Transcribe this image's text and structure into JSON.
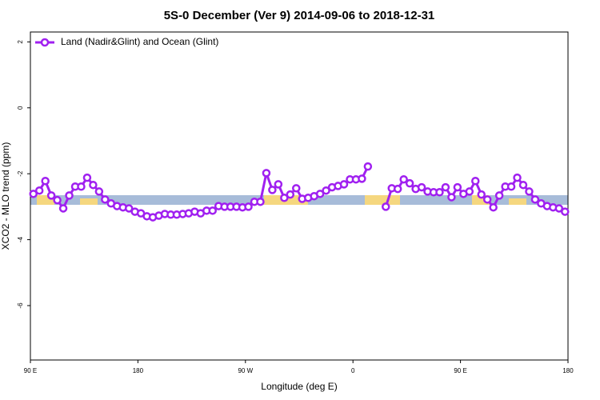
{
  "chart_data": {
    "type": "line",
    "title": "5S-0 December (Ver 9)   2014-09-06 to 2018-12-31",
    "x_label": "Longitude (deg E)",
    "y_label": "XCO2 - MLO trend (ppm)",
    "xlim": [
      90,
      540
    ],
    "xticks": [
      {
        "value": 90,
        "label": "90 E"
      },
      180,
      {
        "value": 270,
        "label": "90 W"
      },
      {
        "value": 360,
        "label": "0"
      },
      {
        "value": 450,
        "label": "90 E"
      },
      {
        "value": 540,
        "label": "180"
      }
    ],
    "ylim": [
      -7.65,
      2.3
    ],
    "yticks": [
      -6,
      -4,
      -2,
      0,
      2
    ],
    "legend": "top-left",
    "x": [
      92.5,
      97.5,
      102.5,
      107.5,
      112.5,
      117.5,
      122.5,
      127.5,
      132.5,
      137.5,
      142.5,
      147.5,
      152.5,
      157.5,
      162.5,
      167.5,
      172.5,
      177.5,
      182.5,
      187.5,
      192.5,
      197.5,
      202.5,
      207.5,
      212.5,
      217.5,
      222.5,
      227.5,
      232.5,
      237.5,
      242.5,
      247.5,
      252.5,
      257.5,
      262.5,
      267.5,
      272.5,
      277.5,
      282.5,
      287.5,
      292.5,
      297.5,
      302.5,
      307.5,
      312.5,
      317.5,
      322.5,
      327.5,
      332.5,
      337.5,
      342.5,
      347.5,
      352.5,
      357.5,
      362.5,
      367.5,
      372.5,
      377.5,
      382.5,
      387.5,
      392.5,
      397.5,
      402.5,
      407.5,
      412.5,
      417.5,
      422.5,
      427.5,
      432.5,
      437.5,
      442.5,
      447.5,
      452.5,
      457.5,
      462.5,
      467.5,
      472.5,
      477.5,
      482.5,
      487.5,
      492.5,
      497.5,
      502.5,
      507.5,
      512.5,
      517.5,
      522.5,
      527.5,
      532.5,
      537.5
    ],
    "series": [
      {
        "name": "Land (Nadir&Glint) and Ocean (Glint)",
        "color": "#a020f0",
        "values": [
          -2.61,
          -2.51,
          -2.22,
          -2.66,
          -2.8,
          -3.05,
          -2.66,
          -2.39,
          -2.39,
          -2.12,
          -2.34,
          -2.54,
          -2.78,
          -2.9,
          -2.98,
          -3.02,
          -3.05,
          -3.15,
          -3.2,
          -3.29,
          -3.32,
          -3.27,
          -3.22,
          -3.24,
          -3.24,
          -3.22,
          -3.2,
          -3.15,
          -3.2,
          -3.12,
          -3.12,
          -2.98,
          -3.0,
          -3.0,
          -3.0,
          -3.02,
          -3.0,
          -2.85,
          -2.85,
          -1.98,
          -2.49,
          -2.32,
          -2.73,
          -2.63,
          -2.44,
          -2.76,
          -2.73,
          -2.68,
          -2.61,
          -2.51,
          -2.41,
          -2.37,
          -2.32,
          -2.17,
          -2.17,
          -2.15,
          -1.78,
          null,
          null,
          -3.0,
          -2.44,
          -2.46,
          -2.17,
          -2.29,
          -2.46,
          -2.41,
          -2.54,
          -2.56,
          -2.56,
          -2.41,
          -2.71,
          -2.41,
          -2.61,
          -2.54,
          -2.22,
          -2.63,
          -2.78,
          -3.02,
          -2.66,
          -2.39,
          -2.39,
          -2.12,
          -2.34,
          -2.54,
          -2.78,
          -2.9,
          -2.98,
          -3.02,
          -3.05,
          -3.15
        ]
      }
    ]
  }
}
